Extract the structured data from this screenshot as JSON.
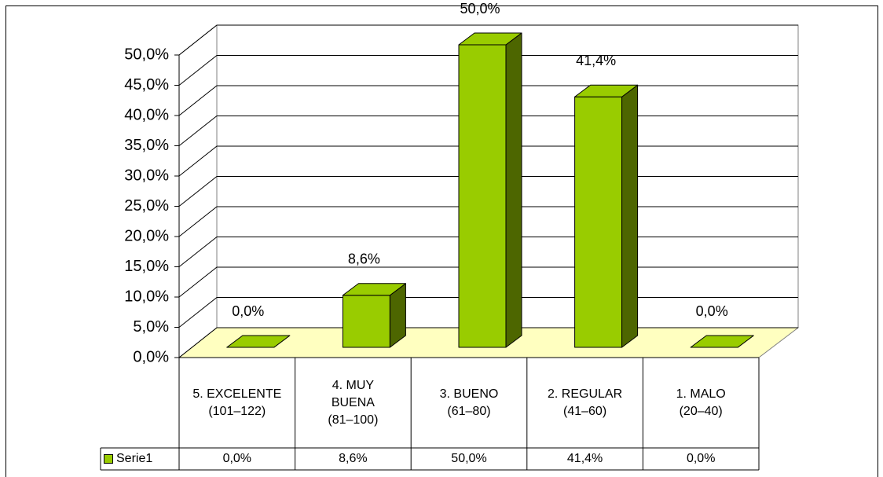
{
  "chart_data": {
    "type": "bar3d",
    "categories": [
      "5. EXCELENTE\n(101–122)",
      "4. MUY\nBUENA\n(81–100)",
      "3. BUENO\n(61–80)",
      "2. REGULAR\n(41–60)",
      "1. MALO\n(20–40)"
    ],
    "series": [
      {
        "name": "Serie1",
        "color": "#99cc00",
        "values": [
          0,
          8.6,
          50,
          41.4,
          0
        ],
        "value_labels": [
          "0,0%",
          "8,6%",
          "50,0%",
          "41,4%",
          "0,0%"
        ]
      }
    ],
    "ylim": [
      0,
      50
    ],
    "yticks": [
      {
        "value": 0,
        "label": "0,0%"
      },
      {
        "value": 5,
        "label": "5,0%"
      },
      {
        "value": 10,
        "label": "10,0%"
      },
      {
        "value": 15,
        "label": "15,0%"
      },
      {
        "value": 20,
        "label": "20,0%"
      },
      {
        "value": 25,
        "label": "25,0%"
      },
      {
        "value": 30,
        "label": "30,0%"
      },
      {
        "value": 35,
        "label": "35,0%"
      },
      {
        "value": 40,
        "label": "40,0%"
      },
      {
        "value": 45,
        "label": "45,0%"
      },
      {
        "value": 50,
        "label": "50,0%"
      }
    ],
    "grid": true,
    "data_table": true
  }
}
